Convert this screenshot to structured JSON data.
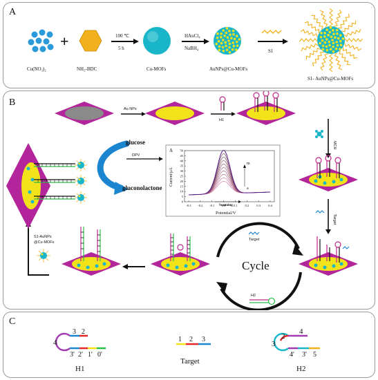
{
  "colors": {
    "magenta": "#b3259a",
    "yellow": "#f2e21a",
    "cyan": "#19b5c8",
    "blue": "#1b86cf",
    "hexagon": "#f2b11c",
    "arrow": "#111111",
    "h1_loop": "#a23bb0",
    "red": "#e8262a",
    "green": "#2bbf4a",
    "chart_curve": "#7a2a8a"
  },
  "panel_a": {
    "label": "A",
    "reagent_1": "Cu(NO₃)₂",
    "plus": "+",
    "reagent_2": "NH₂-BDC",
    "step1_top": "100 ℃",
    "step1_bottom": "5 h",
    "product_1": "Cu-MOFs",
    "step2_top": "HAuCl₄",
    "step2_bottom": "NaBH₄",
    "product_2": "AuNPs@Cu-MOFs",
    "step3_top": "S1",
    "product_3": "S1- AuNPs@Cu-MOFs"
  },
  "panel_b": {
    "label": "B",
    "step_aunps": "Au NPs",
    "step_h1": "H1",
    "step_mch": "MCH",
    "step_target": "Target",
    "glucose": "glucose",
    "dpv": "DPV",
    "gluconolactone": "gluconolactone",
    "probe_label_1": "S1-AuNPs",
    "probe_label_2": "@Cu-MOFs",
    "cycle": "Cycle",
    "cycle_target": "Target",
    "cycle_h2": "H2",
    "inset": {
      "label": "A",
      "ylabel": "Current/μA",
      "xlabel": "Potential/V",
      "scanning": "Scanning",
      "m": "m",
      "a": "a",
      "yticks": [
        "0",
        "5",
        "10",
        "15",
        "20",
        "25",
        "30",
        "35",
        "40",
        "45",
        "50"
      ],
      "xticks": [
        "-0.3",
        "-0.2",
        "-0.1",
        "0.0",
        "0.1",
        "0.2",
        "0.3",
        "0.4"
      ]
    }
  },
  "panel_c": {
    "label": "C",
    "h1_name": "H1",
    "h1_loop": "4",
    "h1_top": [
      "3",
      "2"
    ],
    "h1_bottom": [
      "3'",
      "2'",
      "1'",
      "0'"
    ],
    "target_name": "Target",
    "target_segments": [
      "1",
      "2",
      "3"
    ],
    "h2_name": "H2",
    "h2_loop": "3",
    "h2_top": [
      "2",
      "4"
    ],
    "h2_bottom": [
      "4'",
      "3'",
      "5"
    ]
  }
}
